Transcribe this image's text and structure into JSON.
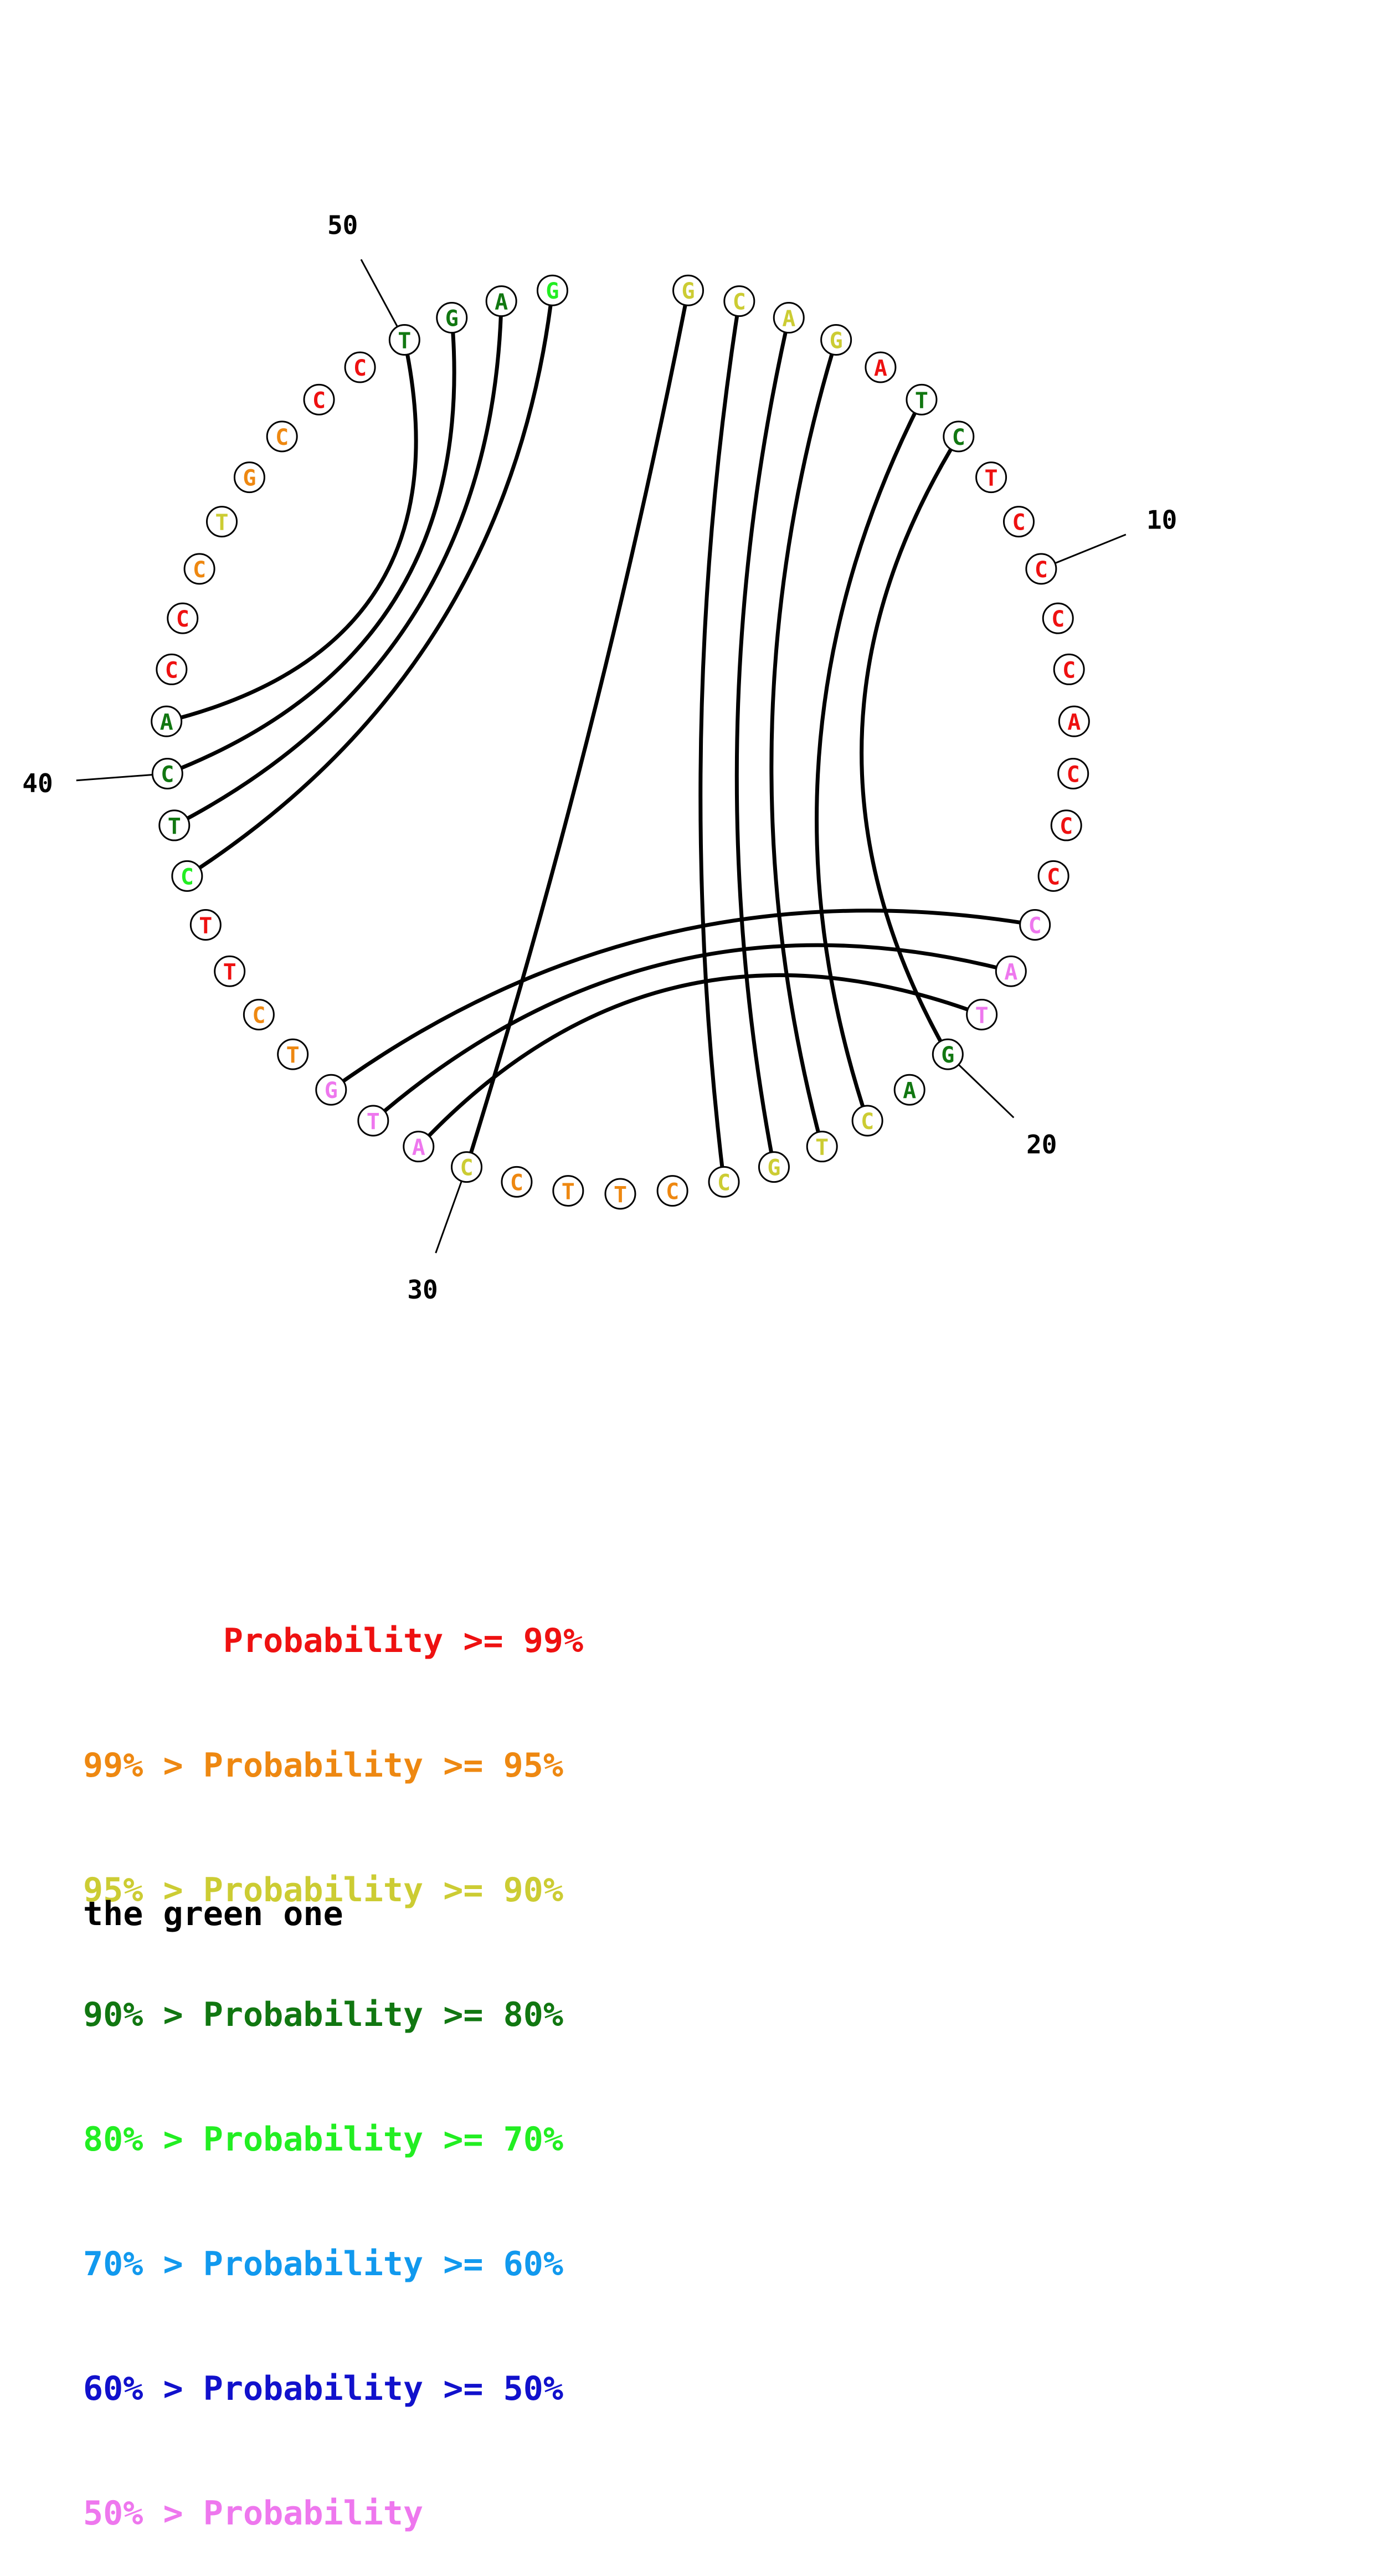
{
  "colors": {
    "p99": "#ee1111",
    "p95": "#ee8811",
    "p90": "#cccc33",
    "p80": "#117711",
    "p70": "#22ee22",
    "p60": "#1199ee",
    "p50": "#1111cc",
    "p0": "#ee77ee"
  },
  "sequence": [
    {
      "n": 1,
      "base": "G",
      "color": "p90"
    },
    {
      "n": 2,
      "base": "C",
      "color": "p90"
    },
    {
      "n": 3,
      "base": "A",
      "color": "p90"
    },
    {
      "n": 4,
      "base": "G",
      "color": "p90"
    },
    {
      "n": 5,
      "base": "A",
      "color": "p99"
    },
    {
      "n": 6,
      "base": "T",
      "color": "p80"
    },
    {
      "n": 7,
      "base": "C",
      "color": "p80"
    },
    {
      "n": 8,
      "base": "T",
      "color": "p99"
    },
    {
      "n": 9,
      "base": "C",
      "color": "p99"
    },
    {
      "n": 10,
      "base": "C",
      "color": "p99"
    },
    {
      "n": 11,
      "base": "C",
      "color": "p99"
    },
    {
      "n": 12,
      "base": "C",
      "color": "p99"
    },
    {
      "n": 13,
      "base": "A",
      "color": "p99"
    },
    {
      "n": 14,
      "base": "C",
      "color": "p99"
    },
    {
      "n": 15,
      "base": "C",
      "color": "p99"
    },
    {
      "n": 16,
      "base": "C",
      "color": "p99"
    },
    {
      "n": 17,
      "base": "C",
      "color": "p0"
    },
    {
      "n": 18,
      "base": "A",
      "color": "p0"
    },
    {
      "n": 19,
      "base": "T",
      "color": "p0"
    },
    {
      "n": 20,
      "base": "G",
      "color": "p80"
    },
    {
      "n": 21,
      "base": "A",
      "color": "p80"
    },
    {
      "n": 22,
      "base": "C",
      "color": "p90"
    },
    {
      "n": 23,
      "base": "T",
      "color": "p90"
    },
    {
      "n": 24,
      "base": "G",
      "color": "p90"
    },
    {
      "n": 25,
      "base": "C",
      "color": "p90"
    },
    {
      "n": 26,
      "base": "C",
      "color": "p95"
    },
    {
      "n": 27,
      "base": "T",
      "color": "p95"
    },
    {
      "n": 28,
      "base": "T",
      "color": "p95"
    },
    {
      "n": 29,
      "base": "C",
      "color": "p95"
    },
    {
      "n": 30,
      "base": "C",
      "color": "p90"
    },
    {
      "n": 31,
      "base": "A",
      "color": "p0"
    },
    {
      "n": 32,
      "base": "T",
      "color": "p0"
    },
    {
      "n": 33,
      "base": "G",
      "color": "p0"
    },
    {
      "n": 34,
      "base": "T",
      "color": "p95"
    },
    {
      "n": 35,
      "base": "C",
      "color": "p95"
    },
    {
      "n": 36,
      "base": "T",
      "color": "p99"
    },
    {
      "n": 37,
      "base": "T",
      "color": "p99"
    },
    {
      "n": 38,
      "base": "C",
      "color": "p70"
    },
    {
      "n": 39,
      "base": "T",
      "color": "p80"
    },
    {
      "n": 40,
      "base": "C",
      "color": "p80"
    },
    {
      "n": 41,
      "base": "A",
      "color": "p80"
    },
    {
      "n": 42,
      "base": "C",
      "color": "p99"
    },
    {
      "n": 43,
      "base": "C",
      "color": "p99"
    },
    {
      "n": 44,
      "base": "C",
      "color": "p95"
    },
    {
      "n": 45,
      "base": "T",
      "color": "p90"
    },
    {
      "n": 46,
      "base": "G",
      "color": "p95"
    },
    {
      "n": 47,
      "base": "C",
      "color": "p95"
    },
    {
      "n": 48,
      "base": "C",
      "color": "p99"
    },
    {
      "n": 49,
      "base": "C",
      "color": "p99"
    },
    {
      "n": 50,
      "base": "T",
      "color": "p80"
    },
    {
      "n": 51,
      "base": "G",
      "color": "p80"
    },
    {
      "n": 52,
      "base": "A",
      "color": "p80"
    },
    {
      "n": 53,
      "base": "G",
      "color": "p70"
    }
  ],
  "pairs": [
    [
      1,
      30
    ],
    [
      2,
      25
    ],
    [
      3,
      24
    ],
    [
      4,
      23
    ],
    [
      6,
      22
    ],
    [
      7,
      20
    ],
    [
      17,
      33
    ],
    [
      18,
      32
    ],
    [
      19,
      31
    ],
    [
      38,
      53
    ],
    [
      39,
      52
    ],
    [
      40,
      51
    ],
    [
      41,
      50
    ]
  ],
  "position_labels": [
    "10",
    "20",
    "30",
    "40",
    "50"
  ],
  "legend": [
    {
      "text": "       Probability >= 99%",
      "color": "p99"
    },
    {
      "text": "99% > Probability >= 95%",
      "color": "p95"
    },
    {
      "text": "95% > Probability >= 90%",
      "color": "p90"
    },
    {
      "text": "90% > Probability >= 80%",
      "color": "p80"
    },
    {
      "text": "80% > Probability >= 70%",
      "color": "p70"
    },
    {
      "text": "70% > Probability >= 60%",
      "color": "p60"
    },
    {
      "text": "60% > Probability >= 50%",
      "color": "p50"
    },
    {
      "text": "50% > Probability",
      "color": "p0"
    }
  ],
  "caption": "the green one"
}
